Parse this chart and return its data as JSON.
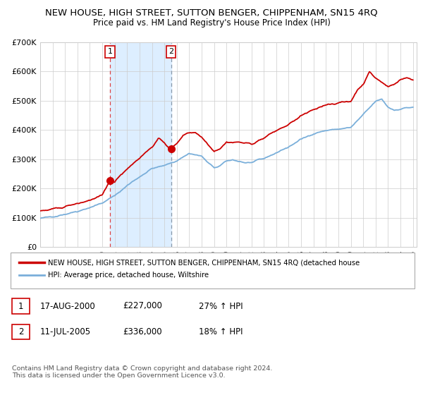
{
  "title": "NEW HOUSE, HIGH STREET, SUTTON BENGER, CHIPPENHAM, SN15 4RQ",
  "subtitle": "Price paid vs. HM Land Registry's House Price Index (HPI)",
  "ylim": [
    0,
    700000
  ],
  "yticks": [
    0,
    100000,
    200000,
    300000,
    400000,
    500000,
    600000,
    700000
  ],
  "ytick_labels": [
    "£0",
    "£100K",
    "£200K",
    "£300K",
    "£400K",
    "£500K",
    "£600K",
    "£700K"
  ],
  "sale1_date": 2000.63,
  "sale1_price": 227000,
  "sale2_date": 2005.53,
  "sale2_price": 336000,
  "legend_line1": "NEW HOUSE, HIGH STREET, SUTTON BENGER, CHIPPENHAM, SN15 4RQ (detached house",
  "legend_line2": "HPI: Average price, detached house, Wiltshire",
  "table_row1": [
    "1",
    "17-AUG-2000",
    "£227,000",
    "27% ↑ HPI"
  ],
  "table_row2": [
    "2",
    "11-JUL-2005",
    "£336,000",
    "18% ↑ HPI"
  ],
  "footer": "Contains HM Land Registry data © Crown copyright and database right 2024.\nThis data is licensed under the Open Government Licence v3.0.",
  "line_color_red": "#cc0000",
  "line_color_blue": "#7aafda",
  "bg_color": "#ffffff",
  "plot_bg": "#ffffff",
  "grid_color": "#cccccc",
  "shade_color": "#ddeeff",
  "title_fontsize": 9.5,
  "subtitle_fontsize": 8.5
}
